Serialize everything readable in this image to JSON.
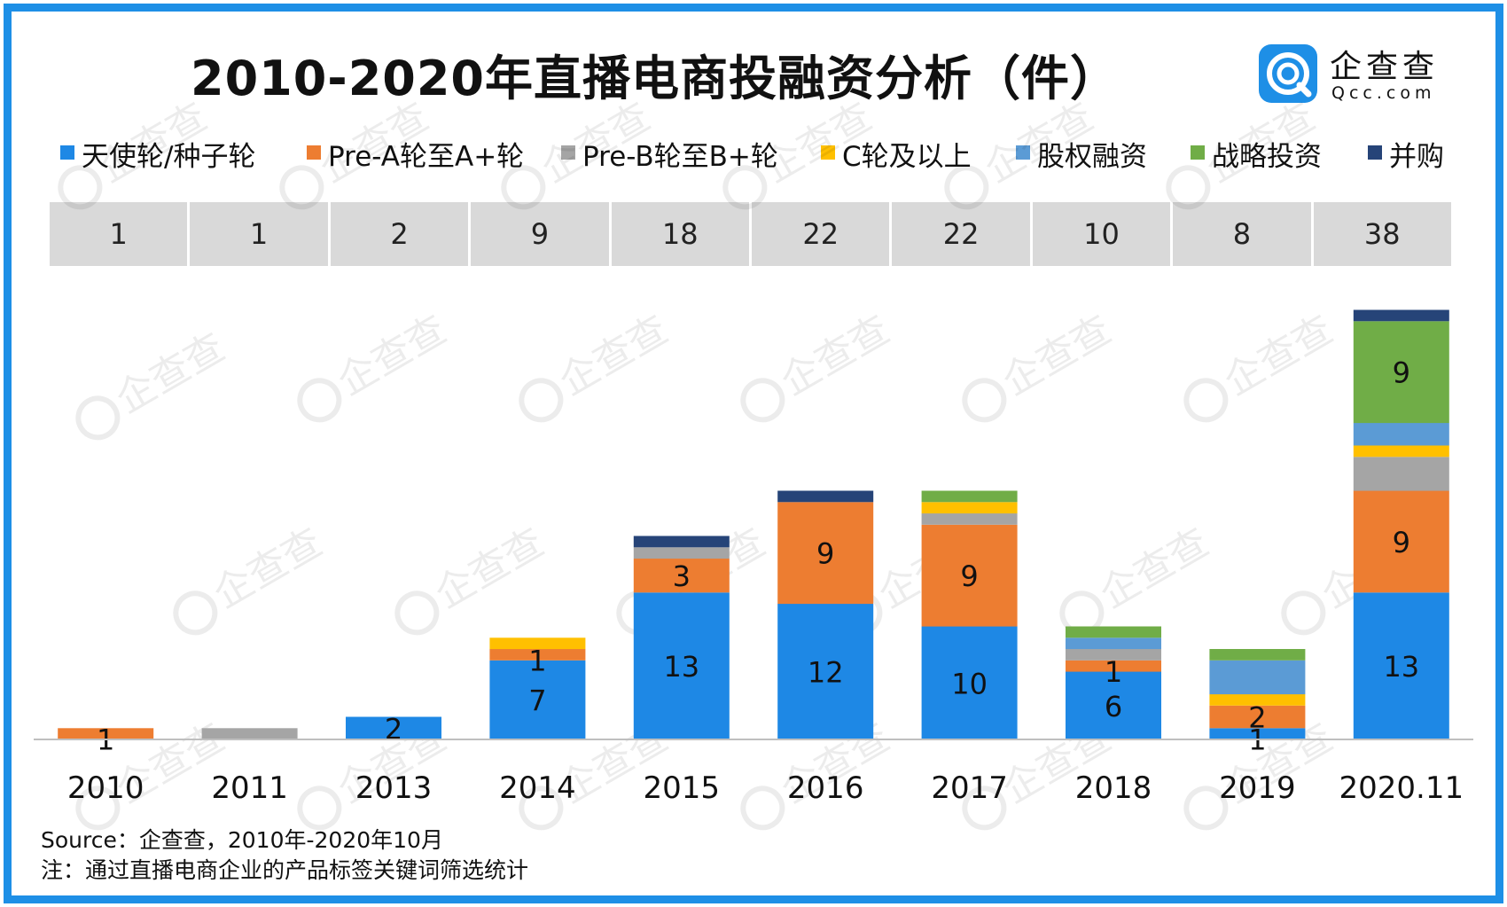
{
  "title": "2010-2020年直播电商投融资分析（件）",
  "logo": {
    "cn": "企查查",
    "en": "Qcc.com"
  },
  "watermark": "企查查",
  "source": "Source：企查查，2010年-2020年10月",
  "note": "注：通过直播电商企业的产品标签关键词筛选统计",
  "colors": {
    "frame": "#1e8fe6",
    "totals_bg": "#d9d9d9",
    "axis": "#bfbfbf"
  },
  "chart_data": {
    "type": "bar",
    "stacked": true,
    "categories": [
      "2010",
      "2011",
      "2013",
      "2014",
      "2015",
      "2016",
      "2017",
      "2018",
      "2019",
      "2020.11"
    ],
    "totals": [
      "1",
      "1",
      "2",
      "9",
      "18",
      "22",
      "22",
      "10",
      "8",
      "38"
    ],
    "series": [
      {
        "name": "天使轮/种子轮",
        "color": "#1e88e5",
        "values": [
          0,
          0,
          2,
          7,
          13,
          12,
          10,
          6,
          1,
          13
        ],
        "labels": [
          null,
          null,
          "2",
          "7",
          "13",
          "12",
          "10",
          "6",
          "1",
          "13"
        ]
      },
      {
        "name": "Pre-A轮至A+轮",
        "color": "#ed7d31",
        "values": [
          1,
          0,
          0,
          1,
          3,
          9,
          9,
          1,
          2,
          9
        ],
        "labels": [
          "1",
          null,
          null,
          "1",
          "3",
          "9",
          "9",
          "1",
          "2",
          "9"
        ]
      },
      {
        "name": "Pre-B轮至B+轮",
        "color": "#a5a5a5",
        "values": [
          0,
          1,
          0,
          0,
          1,
          0,
          1,
          1,
          0,
          3
        ],
        "labels": [
          null,
          null,
          null,
          null,
          null,
          null,
          null,
          null,
          null,
          null
        ]
      },
      {
        "name": "C轮及以上",
        "color": "#ffc000",
        "values": [
          0,
          0,
          0,
          1,
          0,
          0,
          1,
          0,
          1,
          1
        ],
        "labels": [
          null,
          null,
          null,
          null,
          null,
          null,
          null,
          null,
          null,
          null
        ]
      },
      {
        "name": "股权融资",
        "color": "#5b9bd5",
        "values": [
          0,
          0,
          0,
          0,
          0,
          0,
          0,
          1,
          3,
          2
        ],
        "labels": [
          null,
          null,
          null,
          null,
          null,
          null,
          null,
          null,
          null,
          null
        ]
      },
      {
        "name": "战略投资",
        "color": "#70ad47",
        "values": [
          0,
          0,
          0,
          0,
          0,
          0,
          1,
          1,
          1,
          9
        ],
        "labels": [
          null,
          null,
          null,
          null,
          null,
          null,
          null,
          null,
          null,
          "9"
        ]
      },
      {
        "name": "并购",
        "color": "#264478",
        "values": [
          0,
          0,
          0,
          0,
          1,
          1,
          0,
          0,
          0,
          1
        ],
        "labels": [
          null,
          null,
          null,
          null,
          null,
          null,
          null,
          null,
          null,
          null
        ]
      }
    ],
    "ylim": [
      0,
      38
    ],
    "legend_position": "top",
    "grid": false
  }
}
